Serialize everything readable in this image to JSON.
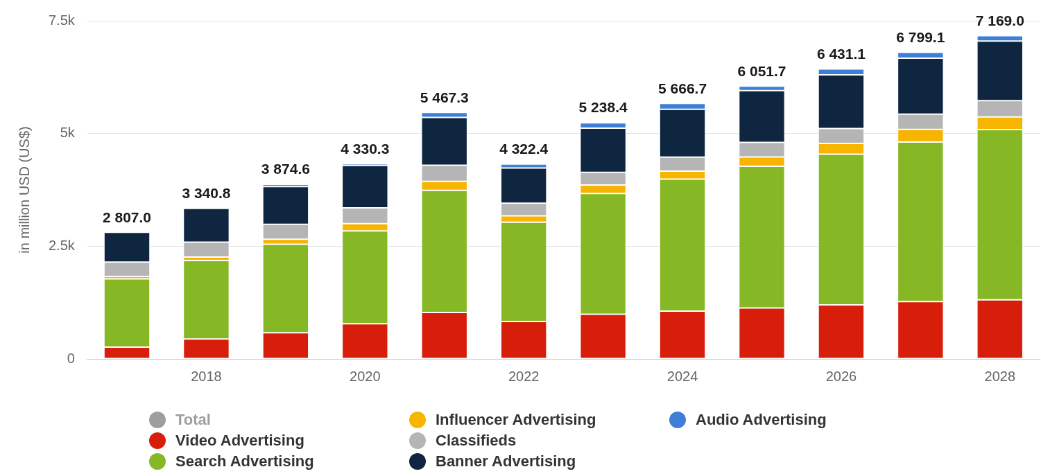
{
  "chart_data": {
    "type": "bar",
    "stacked": true,
    "ylabel": "in million USD (US$)",
    "categories": [
      null,
      "2018",
      null,
      "2020",
      null,
      "2022",
      null,
      "2024",
      null,
      "2026",
      null,
      "2028"
    ],
    "ylim": [
      0,
      7500
    ],
    "yticks": [
      0,
      {
        "value": 2500,
        "label": "2.5k"
      },
      {
        "value": 5000,
        "label": "5k"
      },
      {
        "value": 7500,
        "label": "7.5k"
      }
    ],
    "grid": "y",
    "legend": "bottom",
    "series": [
      {
        "name": "Total",
        "color": "#9e9e9e",
        "values": [
          null,
          null,
          null,
          null,
          null,
          null,
          null,
          null,
          null,
          null,
          null,
          null
        ]
      },
      {
        "name": "Video Advertising",
        "color": "#d71e0b",
        "values": [
          260,
          440,
          580,
          780,
          1030,
          830,
          990,
          1060,
          1130,
          1200,
          1270,
          1310
        ]
      },
      {
        "name": "Search Advertising",
        "color": "#86b825",
        "values": [
          1517,
          1740.8,
          1964.6,
          2060.3,
          2707.3,
          2202.4,
          2678.4,
          2926.7,
          3141.7,
          3341.1,
          3539.1,
          3779
        ]
      },
      {
        "name": "Influencer Advertising",
        "color": "#f7b500",
        "values": [
          50,
          80,
          110,
          160,
          200,
          140,
          190,
          180,
          210,
          240,
          280,
          280
        ]
      },
      {
        "name": "Classifieds",
        "color": "#b5b5b5",
        "values": [
          320,
          330,
          330,
          350,
          360,
          280,
          280,
          310,
          320,
          330,
          340,
          360
        ]
      },
      {
        "name": "Banner Advertising",
        "color": "#0f2640",
        "values": [
          660,
          750,
          840,
          940,
          1060,
          780,
          980,
          1060,
          1150,
          1190,
          1240,
          1320
        ]
      },
      {
        "name": "Audio Advertising",
        "color": "#3d7fd6",
        "values": [
          null,
          null,
          50,
          40,
          110,
          90,
          120,
          130,
          100,
          130,
          130,
          120
        ]
      }
    ],
    "totals": [
      "2 807.0",
      "3 340.8",
      "3 874.6",
      "4 330.3",
      "5 467.3",
      "4 322.4",
      "5 238.4",
      "5 666.7",
      "6 051.7",
      "6 431.1",
      "6 799.1",
      "7 169.0"
    ]
  }
}
